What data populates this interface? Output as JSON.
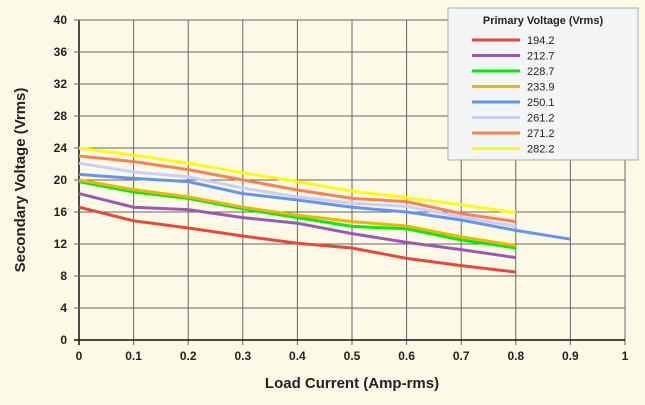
{
  "chart_data": {
    "type": "line",
    "title": "",
    "xlabel": "Load Current (Amp-rms)",
    "ylabel": "Secondary Voltage (Vrms)",
    "xlim": [
      0,
      1
    ],
    "ylim": [
      0,
      40
    ],
    "xticks": [
      "0",
      "0.1",
      "0.2",
      "0.3",
      "0.4",
      "0.5",
      "0.6",
      "0.7",
      "0.8",
      "0.9",
      "1"
    ],
    "yticks": [
      "0",
      "4",
      "8",
      "12",
      "16",
      "20",
      "24",
      "28",
      "32",
      "36",
      "40"
    ],
    "grid": true,
    "legend_title": "Primary Voltage (Vrms)",
    "legend_position": "top-right",
    "x": [
      0,
      0.1,
      0.2,
      0.3,
      0.4,
      0.5,
      0.6,
      0.7,
      0.8
    ],
    "series": [
      {
        "name": "194.2",
        "color": "#e8473a",
        "values": [
          16.6,
          14.9,
          14.0,
          13.0,
          12.1,
          11.5,
          10.2,
          9.3,
          8.5
        ]
      },
      {
        "name": "212.7",
        "color": "#9b59b6",
        "values": [
          18.3,
          16.6,
          16.3,
          15.3,
          14.6,
          13.3,
          12.2,
          11.3,
          10.3
        ]
      },
      {
        "name": "228.7",
        "color": "#00ee00",
        "values": [
          19.8,
          18.5,
          17.7,
          16.4,
          15.3,
          14.2,
          13.9,
          12.5,
          11.5
        ]
      },
      {
        "name": "233.9",
        "color": "#f0b400",
        "values": [
          20.0,
          18.8,
          17.9,
          16.6,
          15.6,
          14.8,
          14.25,
          12.9,
          11.8
        ]
      },
      {
        "name": "250.1",
        "color": "#6495ed",
        "x": [
          0,
          0.1,
          0.2,
          0.3,
          0.4,
          0.5,
          0.6,
          0.7,
          0.8,
          0.9
        ],
        "values": [
          20.7,
          20.2,
          19.8,
          18.3,
          17.5,
          16.6,
          16.0,
          15.0,
          13.7,
          12.6
        ]
      },
      {
        "name": "261.2",
        "color": "#ccccff",
        "values": [
          22.1,
          21.0,
          20.4,
          19.0,
          17.9,
          17.1,
          16.7,
          15.4,
          14.2
        ]
      },
      {
        "name": "271.2",
        "color": "#ff8050",
        "values": [
          23.0,
          22.3,
          21.3,
          20.0,
          18.75,
          17.7,
          17.3,
          15.8,
          14.8
        ]
      },
      {
        "name": "282.2",
        "color": "#ffff00",
        "values": [
          24.0,
          23.1,
          22.1,
          20.9,
          19.8,
          18.6,
          17.8,
          16.9,
          15.9
        ]
      }
    ]
  }
}
